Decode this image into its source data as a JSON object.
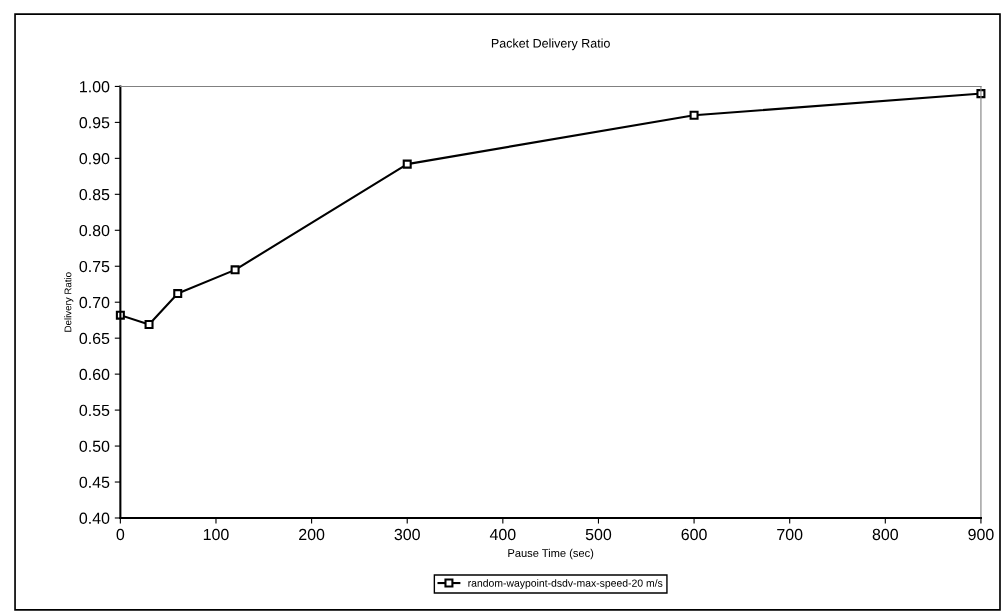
{
  "chart_data": {
    "type": "line",
    "title": "Packet Delivery Ratio",
    "xlabel": "Pause Time (sec)",
    "ylabel": "Delivery Ratio",
    "x": [
      0,
      30,
      60,
      120,
      300,
      600,
      900
    ],
    "series": [
      {
        "name": "random-waypoint-dsdv-max-speed-20 m/s",
        "color": "#000000",
        "values": [
          0.682,
          0.669,
          0.712,
          0.745,
          0.892,
          0.96,
          0.99
        ]
      }
    ],
    "xlim": [
      0,
      900
    ],
    "xticks": [
      0,
      100,
      200,
      300,
      400,
      500,
      600,
      700,
      800,
      900
    ],
    "ylim": [
      0.4,
      1.0
    ],
    "yticks": [
      {
        "value": 0.4,
        "label": "0.40"
      },
      {
        "value": 0.45,
        "label": "0.45"
      },
      {
        "value": 0.5,
        "label": "0.50"
      },
      {
        "value": 0.55,
        "label": "0.55"
      },
      {
        "value": 0.6,
        "label": "0.60"
      },
      {
        "value": 0.65,
        "label": "0.65"
      },
      {
        "value": 0.7,
        "label": "0.70"
      },
      {
        "value": 0.75,
        "label": "0.75"
      },
      {
        "value": 0.8,
        "label": "0.80"
      },
      {
        "value": 0.85,
        "label": "0.85"
      },
      {
        "value": 0.9,
        "label": "0.90"
      },
      {
        "value": 0.95,
        "label": "0.95"
      },
      {
        "value": 1.0,
        "label": "1.00"
      }
    ],
    "grid": false,
    "legend": "bottom",
    "marker": "square",
    "line_style": "solid"
  }
}
